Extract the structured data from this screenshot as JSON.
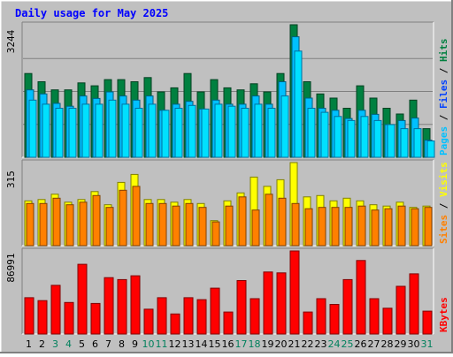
{
  "title": "Daily usage for May 2025",
  "colors": {
    "title": "#0000ff",
    "hits": "#008040",
    "files": "#00e0ff",
    "pages": "#00c0ff",
    "visits": "#ffff00",
    "sites": "#ff8000",
    "kbytes": "#ff0000",
    "weekend_day": "#00805c",
    "weekday": "#000000"
  },
  "chart_data": [
    {
      "type": "bar",
      "panel": "top",
      "title": "Daily usage for May 2025",
      "ymax_label": "3244",
      "ylim": [
        0,
        3244
      ],
      "axis_legend": [
        {
          "text": "Pages",
          "color": "#00c0ff"
        },
        {
          "text": " / ",
          "color": "#000000"
        },
        {
          "text": "Files",
          "color": "#0040ff"
        },
        {
          "text": " / ",
          "color": "#000000"
        },
        {
          "text": "Hits",
          "color": "#008040"
        }
      ],
      "categories": [
        "1",
        "2",
        "3",
        "4",
        "5",
        "6",
        "7",
        "8",
        "9",
        "10",
        "11",
        "12",
        "13",
        "14",
        "15",
        "16",
        "17",
        "18",
        "19",
        "20",
        "21",
        "22",
        "23",
        "24",
        "25",
        "26",
        "27",
        "28",
        "29",
        "30",
        "31"
      ],
      "series": [
        {
          "name": "Hits",
          "values": [
            2050,
            1850,
            1650,
            1650,
            1820,
            1750,
            1900,
            1900,
            1850,
            1950,
            1600,
            1700,
            2050,
            1600,
            1900,
            1700,
            1650,
            1800,
            1600,
            2050,
            3244,
            1850,
            1550,
            1450,
            1200,
            1750,
            1450,
            1200,
            1060,
            1400,
            700
          ]
        },
        {
          "name": "Files",
          "values": [
            1650,
            1550,
            1320,
            1250,
            1500,
            1440,
            1600,
            1500,
            1400,
            1500,
            1150,
            1300,
            1370,
            1180,
            1400,
            1300,
            1300,
            1500,
            1300,
            1850,
            2950,
            1450,
            1200,
            1150,
            950,
            1150,
            1050,
            800,
            900,
            960,
            420
          ]
        },
        {
          "name": "Pages",
          "values": [
            1400,
            1300,
            1200,
            1200,
            1300,
            1300,
            1400,
            1300,
            1200,
            1300,
            1150,
            1200,
            1270,
            1180,
            1300,
            1250,
            1200,
            1300,
            1200,
            1500,
            2600,
            1200,
            1100,
            1000,
            900,
            1000,
            900,
            800,
            700,
            700,
            400
          ]
        }
      ]
    },
    {
      "type": "bar",
      "panel": "middle",
      "ymax_label": "315",
      "ylim": [
        0,
        315
      ],
      "axis_legend": [
        {
          "text": "Sites",
          "color": "#ff8000"
        },
        {
          "text": " / ",
          "color": "#000000"
        },
        {
          "text": "Visits",
          "color": "#ffff00"
        }
      ],
      "categories": [
        "1",
        "2",
        "3",
        "4",
        "5",
        "6",
        "7",
        "8",
        "9",
        "10",
        "11",
        "12",
        "13",
        "14",
        "15",
        "16",
        "17",
        "18",
        "19",
        "20",
        "21",
        "22",
        "23",
        "24",
        "25",
        "26",
        "27",
        "28",
        "29",
        "30",
        "31"
      ],
      "series": [
        {
          "name": "Visits",
          "values": [
            170,
            175,
            195,
            165,
            175,
            205,
            155,
            240,
            270,
            175,
            175,
            165,
            175,
            160,
            95,
            170,
            200,
            260,
            225,
            250,
            315,
            185,
            190,
            170,
            180,
            170,
            155,
            150,
            165,
            145,
            150
          ]
        },
        {
          "name": "Sites",
          "values": [
            160,
            160,
            180,
            155,
            165,
            190,
            145,
            210,
            225,
            160,
            160,
            150,
            160,
            145,
            90,
            150,
            185,
            135,
            195,
            180,
            160,
            140,
            145,
            145,
            145,
            150,
            135,
            140,
            150,
            140,
            145
          ]
        }
      ]
    },
    {
      "type": "bar",
      "panel": "bottom",
      "ymax_label": "86991",
      "ylim": [
        0,
        86991
      ],
      "axis_legend": [
        {
          "text": "KBytes",
          "color": "#ff0000"
        }
      ],
      "categories": [
        "1",
        "2",
        "3",
        "4",
        "5",
        "6",
        "7",
        "8",
        "9",
        "10",
        "11",
        "12",
        "13",
        "14",
        "15",
        "16",
        "17",
        "18",
        "19",
        "20",
        "21",
        "22",
        "23",
        "24",
        "25",
        "26",
        "27",
        "28",
        "29",
        "30",
        "31"
      ],
      "series": [
        {
          "name": "KBytes",
          "values": [
            38000,
            35000,
            51000,
            33000,
            73000,
            32000,
            59000,
            57000,
            61000,
            26000,
            38000,
            21000,
            38000,
            36000,
            48000,
            23000,
            56000,
            37000,
            65000,
            64000,
            86991,
            23000,
            37000,
            31000,
            57000,
            77000,
            37000,
            27000,
            50000,
            63000,
            24000
          ]
        }
      ]
    }
  ]
}
